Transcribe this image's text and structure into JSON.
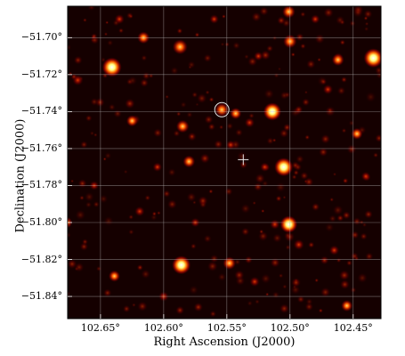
{
  "figure": {
    "x_label": "Right Ascension (J2000)",
    "y_label": "Declination (J2000)",
    "x_ticks": [
      {
        "value": 102.65,
        "label": "102.65°"
      },
      {
        "value": 102.6,
        "label": "102.60°"
      },
      {
        "value": 102.55,
        "label": "102.55°"
      },
      {
        "value": 102.5,
        "label": "102.50°"
      },
      {
        "value": 102.45,
        "label": "102.45°"
      }
    ],
    "y_ticks": [
      {
        "value": -51.7,
        "label": "−51.70°"
      },
      {
        "value": -51.72,
        "label": "−51.72°"
      },
      {
        "value": -51.74,
        "label": "−51.74°"
      },
      {
        "value": -51.76,
        "label": "−51.76°"
      },
      {
        "value": -51.78,
        "label": "−51.78°"
      },
      {
        "value": -51.8,
        "label": "−51.80°"
      },
      {
        "value": -51.82,
        "label": "−51.82°"
      },
      {
        "value": -51.84,
        "label": "−51.84°"
      }
    ],
    "ra_range": [
      102.676,
      102.428
    ],
    "dec_range": [
      -51.852,
      -51.683
    ],
    "colormap": "hot",
    "grid": true,
    "grid_color": "#bbbbbb",
    "crosshair_marker": {
      "ra": 102.537,
      "dec": -51.766,
      "symbol": "+"
    },
    "circle_marker": {
      "ra": 102.554,
      "dec": -51.739,
      "symbol": "circle"
    },
    "sources": [
      {
        "ra": 102.641,
        "dec": -51.716,
        "intensity": 1.0
      },
      {
        "ra": 102.434,
        "dec": -51.711,
        "intensity": 1.0
      },
      {
        "ra": 102.514,
        "dec": -51.74,
        "intensity": 0.9
      },
      {
        "ra": 102.505,
        "dec": -51.77,
        "intensity": 0.95
      },
      {
        "ra": 102.501,
        "dec": -51.801,
        "intensity": 0.85
      },
      {
        "ra": 102.586,
        "dec": -51.823,
        "intensity": 0.95
      },
      {
        "ra": 102.554,
        "dec": -51.739,
        "intensity": 0.6
      },
      {
        "ra": 102.587,
        "dec": -51.705,
        "intensity": 0.7
      },
      {
        "ra": 102.5,
        "dec": -51.702,
        "intensity": 0.6
      },
      {
        "ra": 102.501,
        "dec": -51.686,
        "intensity": 0.55
      },
      {
        "ra": 102.616,
        "dec": -51.7,
        "intensity": 0.5
      },
      {
        "ra": 102.543,
        "dec": -51.741,
        "intensity": 0.45
      },
      {
        "ra": 102.585,
        "dec": -51.748,
        "intensity": 0.55
      },
      {
        "ra": 102.58,
        "dec": -51.767,
        "intensity": 0.5
      },
      {
        "ra": 102.625,
        "dec": -51.745,
        "intensity": 0.45
      },
      {
        "ra": 102.462,
        "dec": -51.712,
        "intensity": 0.5
      },
      {
        "ra": 102.668,
        "dec": -51.723,
        "intensity": 0.4
      },
      {
        "ra": 102.447,
        "dec": -51.752,
        "intensity": 0.45
      },
      {
        "ra": 102.532,
        "dec": -51.746,
        "intensity": 0.35
      },
      {
        "ra": 102.548,
        "dec": -51.822,
        "intensity": 0.55
      },
      {
        "ra": 102.493,
        "dec": -51.812,
        "intensity": 0.4
      },
      {
        "ra": 102.639,
        "dec": -51.829,
        "intensity": 0.45
      },
      {
        "ra": 102.455,
        "dec": -51.845,
        "intensity": 0.45
      },
      {
        "ra": 102.619,
        "dec": -51.794,
        "intensity": 0.35
      },
      {
        "ra": 102.547,
        "dec": -51.758,
        "intensity": 0.3
      },
      {
        "ra": 102.512,
        "dec": -51.801,
        "intensity": 0.35
      },
      {
        "ra": 102.677,
        "dec": -51.8,
        "intensity": 0.45
      },
      {
        "ra": 102.528,
        "dec": -51.832,
        "intensity": 0.35
      },
      {
        "ra": 102.47,
        "dec": -51.728,
        "intensity": 0.35
      },
      {
        "ra": 102.465,
        "dec": -51.815,
        "intensity": 0.35
      },
      {
        "ra": 102.6,
        "dec": -51.84,
        "intensity": 0.35
      },
      {
        "ra": 102.655,
        "dec": -51.78,
        "intensity": 0.3
      },
      {
        "ra": 102.52,
        "dec": -51.77,
        "intensity": 0.3
      },
      {
        "ra": 102.56,
        "dec": -51.69,
        "intensity": 0.3
      },
      {
        "ra": 102.44,
        "dec": -51.775,
        "intensity": 0.3
      },
      {
        "ra": 102.575,
        "dec": -51.8,
        "intensity": 0.3
      },
      {
        "ra": 102.635,
        "dec": -51.69,
        "intensity": 0.35
      },
      {
        "ra": 102.48,
        "dec": -51.69,
        "intensity": 0.3
      },
      {
        "ra": 102.605,
        "dec": -51.77,
        "intensity": 0.3
      },
      {
        "ra": 102.525,
        "dec": -51.71,
        "intensity": 0.3
      }
    ]
  }
}
